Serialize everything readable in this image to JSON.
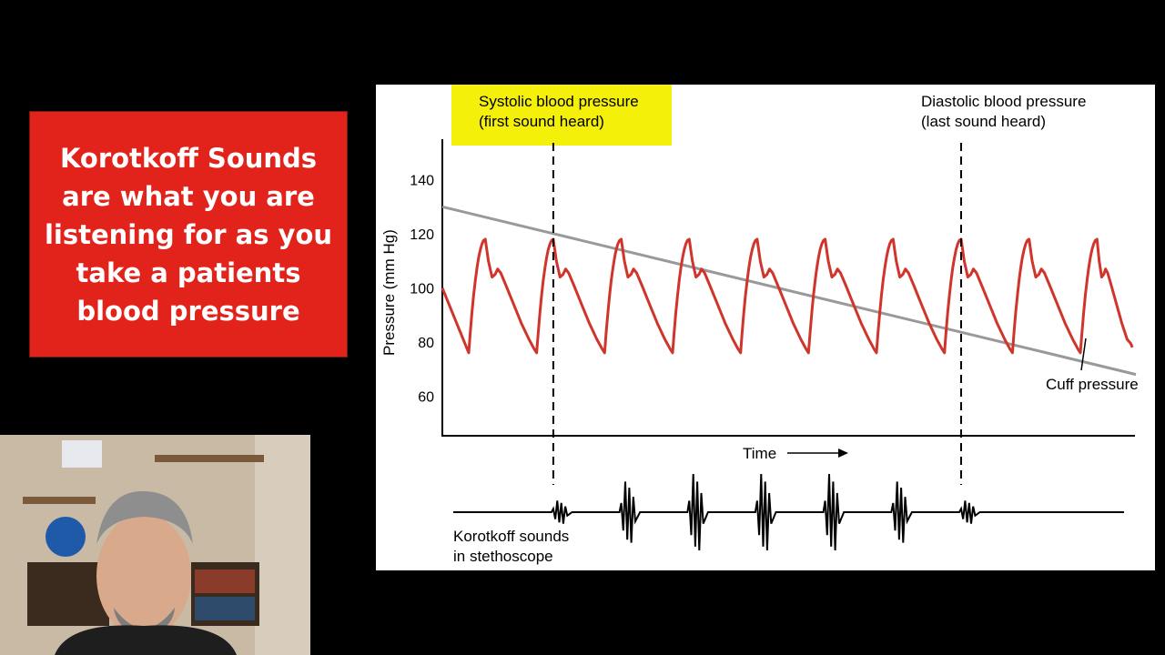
{
  "callout": {
    "text": "Korotkoff Sounds are what you are listening for as you take a patients blood pressure",
    "background": "#e1231c"
  },
  "webcam": {
    "description_icon": "presenter-webcam"
  },
  "chart_data": {
    "type": "line",
    "ylabel": "Pressure (mm Hg)",
    "xlabel": "Time",
    "yticks": [
      60,
      80,
      100,
      120,
      140
    ],
    "ylim": [
      45,
      155
    ],
    "xlim": [
      0,
      10
    ],
    "series": [
      {
        "name": "",
        "color": "#d0352b",
        "style": "arterial-pulse",
        "systolic": 118,
        "diastolic": 76,
        "beat_peaks_x": [
          0.62,
          1.6,
          2.58,
          3.56,
          4.54,
          5.52,
          6.5,
          7.48,
          8.46,
          9.44
        ],
        "beat_mins_x": [
          0.38,
          1.36,
          2.34,
          3.32,
          4.3,
          5.28,
          6.26,
          7.24,
          8.22,
          9.2
        ]
      },
      {
        "name": "Cuff pressure",
        "color": "#999999",
        "x": [
          0,
          10
        ],
        "y": [
          130,
          68
        ]
      }
    ],
    "annotations": {
      "systolic": {
        "line1": "Systolic blood pressure",
        "line2": "(first sound heard)",
        "x": 1.6,
        "highlight": "#f4f009"
      },
      "diastolic": {
        "line1": "Diastolic blood pressure",
        "line2": "(last sound heard)",
        "x": 7.48
      },
      "cuff": "Cuff pressure",
      "korotkoff": {
        "line1": "Korotkoff sounds",
        "line2": "in stethoscope"
      }
    },
    "korotkoff_bursts": [
      {
        "x": 1.6,
        "strength": 0.3
      },
      {
        "x": 2.58,
        "strength": 0.8
      },
      {
        "x": 3.56,
        "strength": 1.0
      },
      {
        "x": 4.54,
        "strength": 1.0
      },
      {
        "x": 5.52,
        "strength": 1.0
      },
      {
        "x": 6.5,
        "strength": 0.8
      },
      {
        "x": 7.48,
        "strength": 0.3
      }
    ],
    "grid": false
  }
}
